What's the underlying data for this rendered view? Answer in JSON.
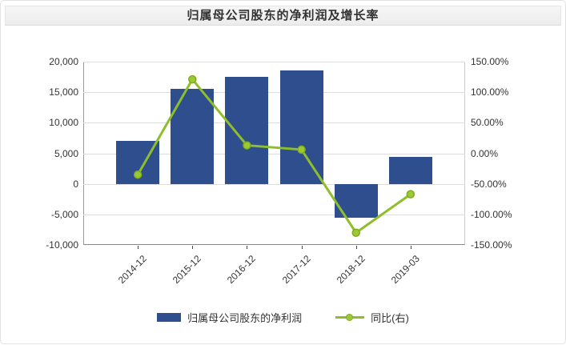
{
  "colors": {
    "bar": "#2E4E8E",
    "line": "#8EBE2B",
    "marker_fill": "#9BC934",
    "marker_stroke": "#7FAC1E",
    "grid": "#dddddd",
    "axis_left": "#999999",
    "axis_right": "#cccccc",
    "axis_bottom": "#888888",
    "tick": "#444444",
    "text": "#333333"
  },
  "chart_data": {
    "type": "bar+line",
    "title": "归属母公司股东的净利润及增长率",
    "categories": [
      "2014-12",
      "2015-12",
      "2016-12",
      "2017-12",
      "2018-12",
      "2019-03"
    ],
    "series": [
      {
        "name": "归属母公司股东的净利润",
        "type": "bar",
        "axis": "left",
        "values": [
          7000,
          15500,
          17500,
          18500,
          -5500,
          4400
        ]
      },
      {
        "name": "同比(右)",
        "type": "line",
        "axis": "right",
        "values": [
          -35,
          121,
          13,
          6,
          -130,
          -67
        ]
      }
    ],
    "left_axis": {
      "min": -10000,
      "max": 20000,
      "step": 5000,
      "ticks": [
        "20,000",
        "15,000",
        "10,000",
        "5,000",
        "0",
        "-5,000",
        "-10,000"
      ]
    },
    "right_axis": {
      "min": -150,
      "max": 150,
      "step": 50,
      "ticks": [
        "150.00%",
        "100.00%",
        "50.00%",
        "0.00%",
        "-50.00%",
        "-100.00%",
        "-150.00%"
      ]
    },
    "legend": [
      "归属母公司股东的净利润",
      "同比(右)"
    ],
    "legend_position": "bottom",
    "grid": true
  }
}
